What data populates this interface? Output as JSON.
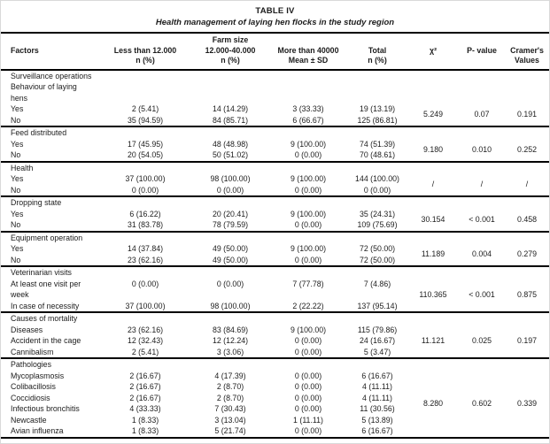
{
  "page": {
    "title": "TABLE IV",
    "subtitle": "Health management of laying hen flocks in the study region"
  },
  "columns": {
    "factors": "Factors",
    "farm_size_group": "Farm size",
    "less_than": {
      "line1": "Less than 12.000",
      "line2": "n (%)"
    },
    "mid": {
      "line1": "12.000-40.000",
      "line2": "n (%)"
    },
    "more_than": {
      "line1": "More than 40000",
      "line2": "Mean ± SD"
    },
    "total": {
      "line1": "Total",
      "line2": "n (%)"
    },
    "chi_square": "χ²",
    "p_value": "P- value",
    "cramer": {
      "line1": "Cramer's",
      "line2": "Values"
    }
  },
  "sections": [
    {
      "headers": [
        [
          "Surveillance operations"
        ],
        [
          "Behaviour of laying",
          "hens"
        ]
      ],
      "rows": [
        {
          "label": [
            "Yes"
          ],
          "values": [
            "2 (5.41)",
            "14 (14.29)",
            "3 (33.33)",
            "19 (13.19)"
          ]
        },
        {
          "label": [
            "No"
          ],
          "values": [
            "35 (94.59)",
            "84 (85.71)",
            "6 (66.67)",
            "125 (86.81)"
          ]
        }
      ],
      "stats": {
        "chi": "5.249",
        "p": "0.07",
        "cramer": "0.191"
      }
    },
    {
      "headers": [
        [
          "Feed distributed"
        ]
      ],
      "rows": [
        {
          "label": [
            "Yes"
          ],
          "values": [
            "17 (45.95)",
            "48 (48.98)",
            "9 (100.00)",
            "74 (51.39)"
          ]
        },
        {
          "label": [
            "No"
          ],
          "values": [
            "20 (54.05)",
            "50 (51.02)",
            "0 (0.00)",
            "70 (48.61)"
          ]
        }
      ],
      "stats": {
        "chi": "9.180",
        "p": "0.010",
        "cramer": "0.252"
      }
    },
    {
      "headers": [
        [
          "Health"
        ]
      ],
      "rows": [
        {
          "label": [
            "Yes"
          ],
          "values": [
            "37 (100.00)",
            "98 (100.00)",
            "9 (100.00)",
            "144 (100.00)"
          ]
        },
        {
          "label": [
            "No"
          ],
          "values": [
            "0 (0.00)",
            "0 (0.00)",
            "0 (0.00)",
            "0 (0.00)"
          ]
        }
      ],
      "stats": {
        "chi": "/",
        "p": "/",
        "cramer": "/"
      }
    },
    {
      "headers": [
        [
          "Dropping state"
        ]
      ],
      "rows": [
        {
          "label": [
            "Yes"
          ],
          "values": [
            "6 (16.22)",
            "20 (20.41)",
            "9 (100.00)",
            "35 (24.31)"
          ]
        },
        {
          "label": [
            "No"
          ],
          "values": [
            "31 (83.78)",
            "78 (79.59)",
            "0 (0.00)",
            "109 (75.69)"
          ]
        }
      ],
      "stats": {
        "chi": "30.154",
        "p": "< 0.001",
        "cramer": "0.458"
      }
    },
    {
      "headers": [
        [
          "Equipment operation"
        ]
      ],
      "rows": [
        {
          "label": [
            "Yes"
          ],
          "values": [
            "14 (37.84)",
            "49 (50.00)",
            "9 (100.00)",
            "72 (50.00)"
          ]
        },
        {
          "label": [
            "No"
          ],
          "values": [
            "23 (62.16)",
            "49 (50.00)",
            "0 (0.00)",
            "72 (50.00)"
          ]
        }
      ],
      "stats": {
        "chi": "11.189",
        "p": "0.004",
        "cramer": "0.279"
      }
    },
    {
      "headers": [
        [
          "Veterinarian visits"
        ]
      ],
      "rows": [
        {
          "label": [
            "At least one visit per",
            "week"
          ],
          "values": [
            "0 (0.00)",
            "0 (0.00)",
            "7 (77.78)",
            "7 (4.86)"
          ]
        },
        {
          "label": [
            "In case of necessity"
          ],
          "values": [
            "37 (100.00)",
            "98 (100.00)",
            "2 (22.22)",
            "137 (95.14)"
          ]
        }
      ],
      "stats": {
        "chi": "110.365",
        "p": "< 0.001",
        "cramer": "0.875"
      }
    },
    {
      "headers": [
        [
          "Causes of mortality"
        ]
      ],
      "rows": [
        {
          "label": [
            "Diseases"
          ],
          "values": [
            "23 (62.16)",
            "83 (84.69)",
            "9 (100.00)",
            "115 (79.86)"
          ]
        },
        {
          "label": [
            "Accident in the cage"
          ],
          "values": [
            "12 (32.43)",
            "12 (12.24)",
            "0 (0.00)",
            "24 (16.67)"
          ]
        },
        {
          "label": [
            "Cannibalism"
          ],
          "values": [
            "2 (5.41)",
            "3 (3.06)",
            "0 (0.00)",
            "5 (3.47)"
          ]
        }
      ],
      "stats": {
        "chi": "11.121",
        "p": "0.025",
        "cramer": "0.197"
      }
    },
    {
      "headers": [
        [
          "Pathologies"
        ]
      ],
      "rows": [
        {
          "label": [
            "Mycoplasmosis"
          ],
          "values": [
            "2 (16.67)",
            "4 (17.39)",
            "0 (0.00)",
            "6 (16.67)"
          ]
        },
        {
          "label": [
            "Colibacillosis"
          ],
          "values": [
            "2 (16.67)",
            "2 (8.70)",
            "0 (0.00)",
            "4 (11.11)"
          ]
        },
        {
          "label": [
            "Coccidiosis"
          ],
          "values": [
            "2 (16.67)",
            "2 (8.70)",
            "0 (0.00)",
            "4 (11.11)"
          ]
        },
        {
          "label": [
            "Infectious bronchitis"
          ],
          "values": [
            "4 (33.33)",
            "7 (30.43)",
            "0 (0.00)",
            "11 (30.56)"
          ]
        },
        {
          "label": [
            "Newcastle"
          ],
          "values": [
            "1 (8.33)",
            "3 (13.04)",
            "1 (11.11)",
            "5 (13.89)"
          ]
        },
        {
          "label": [
            "Avian influenza"
          ],
          "values": [
            "1 (8.33)",
            "5 (21.74)",
            "0 (0.00)",
            "6 (16.67)"
          ]
        }
      ],
      "stats": {
        "chi": "8.280",
        "p": "0.602",
        "cramer": "0.339"
      }
    }
  ],
  "colors": {
    "text": "#1c1c1c",
    "rule": "#000000",
    "background": "#ffffff"
  }
}
